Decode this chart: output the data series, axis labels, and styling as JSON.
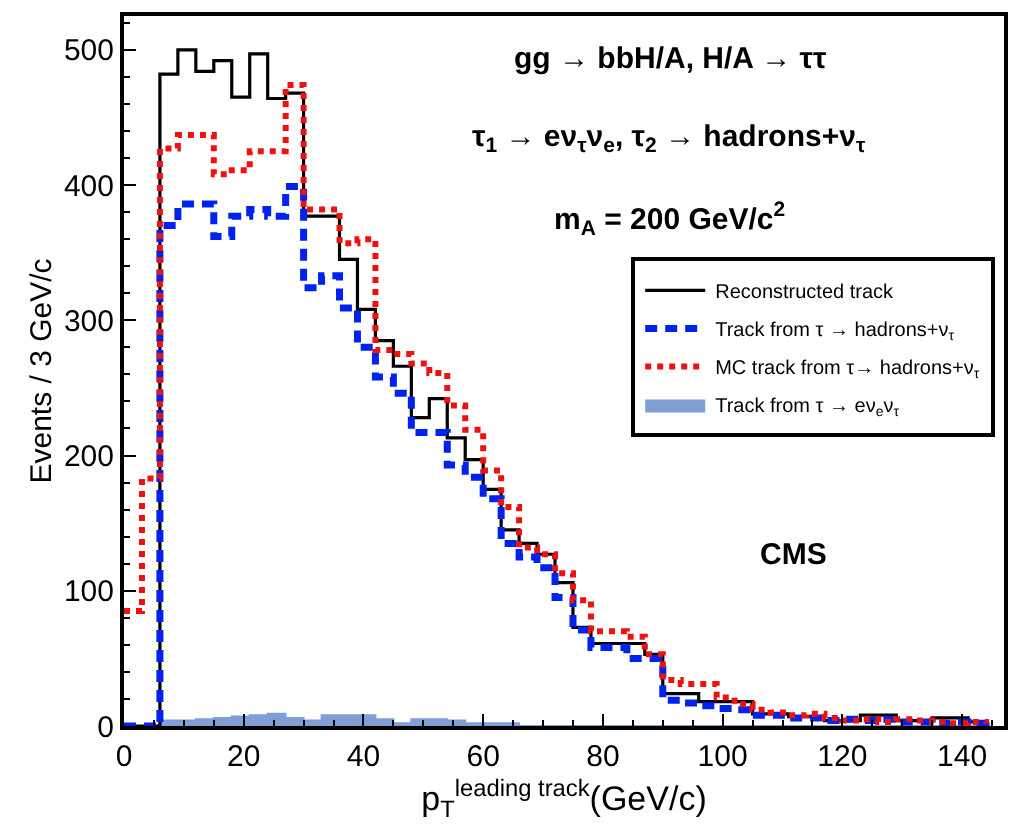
{
  "chart_data": {
    "type": "step",
    "xlabel": "p$_{T}$$^{leading track}$(GeV/c)",
    "ylabel": "Events / 3 GeV/c",
    "annotations": [
      "gg → bbH/A, H/A → ττ",
      "τ$_{1}$ → eν$_{τ}$ν$_{e}$, τ$_{2}$ → hadrons+ν$_{τ}$",
      "m$_{A}$ = 200 GeV/c$^{2}$",
      "CMS"
    ],
    "x": [
      0,
      3,
      6,
      9,
      12,
      15,
      18,
      21,
      24,
      27,
      30,
      33,
      36,
      39,
      42,
      45,
      48,
      51,
      54,
      57,
      60,
      63,
      66,
      69,
      72,
      75,
      78,
      81,
      84,
      87,
      90,
      93,
      96,
      99,
      102,
      105,
      108,
      111,
      114,
      117,
      120,
      123,
      126,
      129,
      132,
      135,
      138,
      141,
      144
    ],
    "series": [
      {
        "name": "Reconstructed track",
        "line_style": "solid",
        "color": "#000000",
        "values": [
          0,
          0,
          482,
          500,
          484,
          492,
          465,
          497,
          464,
          468,
          377,
          377,
          345,
          308,
          285,
          266,
          228,
          242,
          213,
          197,
          175,
          145,
          135,
          127,
          106,
          73,
          61,
          61,
          61,
          53,
          24,
          24,
          18,
          18,
          18,
          9,
          9,
          7,
          7,
          4,
          4,
          8,
          8,
          4,
          4,
          6,
          6,
          3,
          3
        ]
      },
      {
        "name": "Track from τ → hadrons+ν$_{τ}$",
        "line_style": "dashed",
        "color": "#0022ee",
        "values": [
          0,
          0,
          370,
          386,
          386,
          362,
          377,
          382,
          377,
          399,
          324,
          333,
          309,
          280,
          258,
          246,
          217,
          217,
          193,
          184,
          168,
          135,
          125,
          117,
          95,
          71,
          58,
          58,
          50,
          50,
          19,
          17,
          15,
          13,
          12,
          8,
          8,
          6,
          6,
          4,
          5,
          4,
          5,
          3,
          3,
          2,
          3,
          2,
          3
        ]
      },
      {
        "name": "MC track from τ→ hadrons+ν$_{τ}$",
        "line_style": "dotted",
        "color": "#ee1111",
        "values": [
          85,
          183,
          427,
          437,
          437,
          408,
          411,
          425,
          425,
          474,
          382,
          382,
          357,
          360,
          278,
          275,
          268,
          261,
          237,
          219,
          189,
          162,
          132,
          127,
          113,
          93,
          70,
          70,
          66,
          53,
          34,
          31,
          31,
          21,
          16,
          12,
          10,
          8,
          9,
          6,
          4,
          5,
          3,
          5,
          4,
          3,
          2,
          3,
          2
        ]
      },
      {
        "name": "Track from τ → eν$_{e}$ν$_{τ}$",
        "type": "area",
        "color": "#7f9fd5",
        "values": [
          0,
          0,
          4,
          4,
          5,
          6,
          7,
          8,
          9,
          6,
          4,
          8,
          8,
          8,
          5,
          2,
          5,
          5,
          4,
          2,
          2,
          2,
          0,
          0,
          0,
          0,
          0,
          0,
          0,
          0,
          0,
          0,
          0,
          0,
          0,
          0,
          0,
          0,
          0,
          0,
          0,
          0,
          0,
          0,
          0,
          0,
          0,
          0,
          0
        ]
      }
    ],
    "xlim": [
      0,
      147
    ],
    "ylim": [
      0,
      525
    ],
    "xticks": [
      0,
      20,
      40,
      60,
      80,
      100,
      120,
      140
    ],
    "yticks": [
      0,
      100,
      200,
      300,
      400,
      500
    ],
    "legend": "right"
  }
}
